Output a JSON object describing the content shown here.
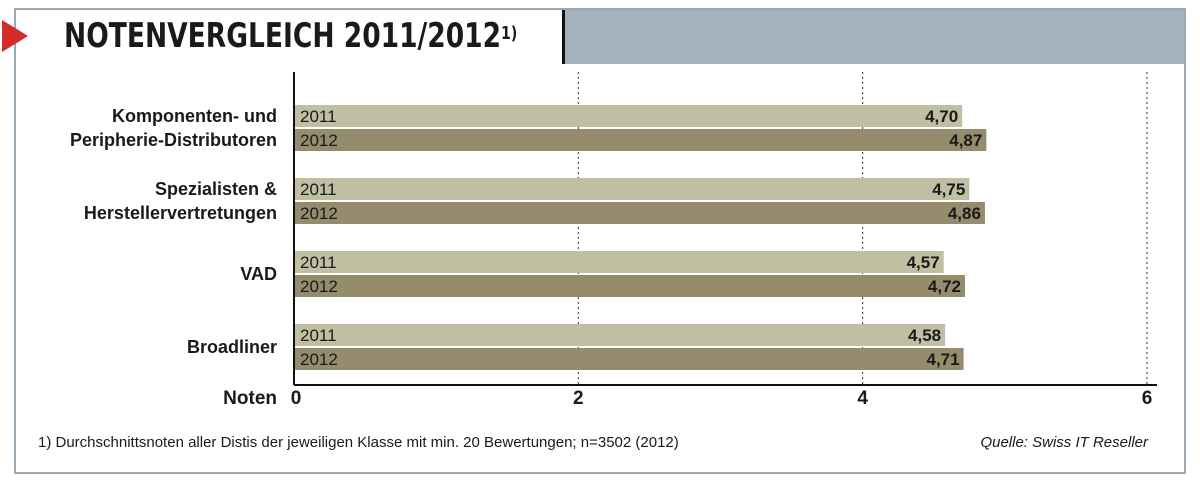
{
  "title": "NOTENVERGLEICH 2011/2012",
  "title_sup": "1)",
  "footnote": "1) Durchschnittsnoten aller Distis der jeweiligen Klasse mit min. 20 Bewertungen; n=3502 (2012)",
  "source": "Quelle: Swiss IT Reseller",
  "colors": {
    "bar_2011": "#c1bfa2",
    "bar_2012": "#948c6c",
    "header_band": "#a4b4bf",
    "arrow": "#d42b2b"
  },
  "chart_data": {
    "type": "bar",
    "orientation": "horizontal",
    "categories": [
      [
        "Komponenten- und",
        "Peripherie-Distributoren"
      ],
      [
        "Spezialisten &",
        "Herstellervertretungen"
      ],
      [
        "VAD"
      ],
      [
        "Broadliner"
      ]
    ],
    "series": [
      {
        "name": "2011",
        "values": [
          4.7,
          4.75,
          4.57,
          4.58
        ],
        "labels": [
          "4,70",
          "4,75",
          "4,57",
          "4,58"
        ]
      },
      {
        "name": "2012",
        "values": [
          4.87,
          4.86,
          4.72,
          4.71
        ],
        "labels": [
          "4,87",
          "4,86",
          "4,72",
          "4,71"
        ]
      }
    ],
    "xlabel": "Noten",
    "xlim": [
      0,
      6
    ],
    "xticks": [
      {
        "value": 0,
        "label": "0"
      },
      {
        "value": 2,
        "label": "2"
      },
      {
        "value": 4,
        "label": "4"
      },
      {
        "value": 6,
        "label": "6"
      }
    ],
    "grid": "vertical-dotted"
  }
}
